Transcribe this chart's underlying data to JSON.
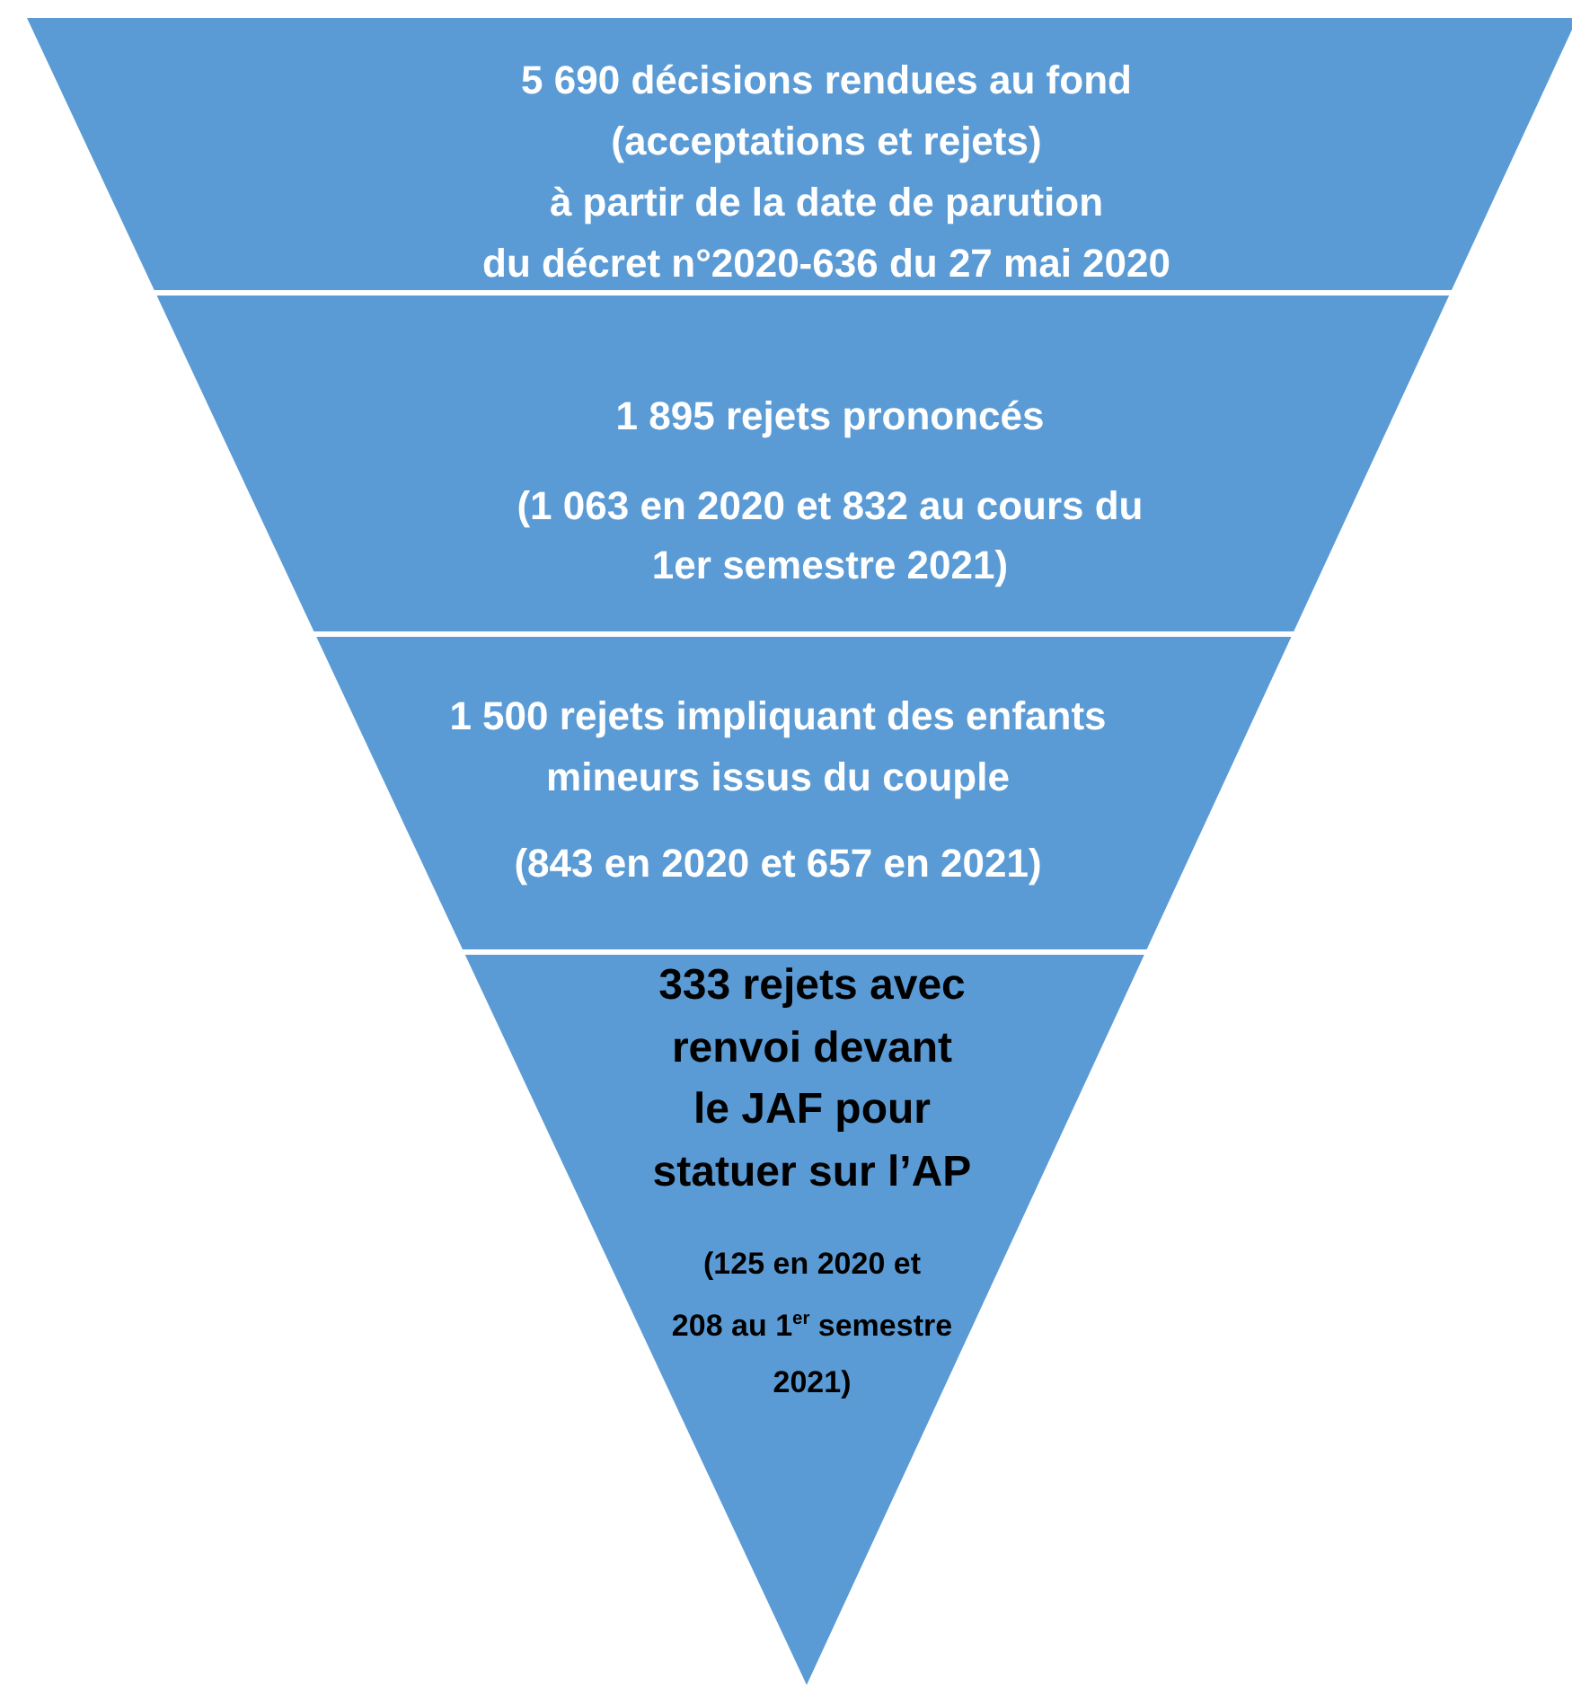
{
  "chart_data": {
    "type": "other",
    "categories": [
      "décisions rendues au fond\n(acceptations et rejets)\nà partir de la date de parution\ndu décret n°2020-636 du 27 mai 2020",
      "rejets prononcés\n\n(1 063 en 2020 et 832 au cours du\n1er semestre 2021)",
      "rejets impliquant des enfants\nmineurs issus du couple\n\n(843 en 2020 et 657 en 2021)",
      "rejets avec\nrenvoi devant\nle JAF pour\nstatuer sur l’AP\n\n(125 en 2020 et\n208 au 1$^{er}$ semestre\n2021)"
    ],
    "values": [
      5690,
      1895,
      1500,
      333
    ],
    "data_labels": true,
    "colors": [
      "#5b9bd5",
      "#5b9bd5",
      "#5b9bd5",
      "#5b9bd5"
    ]
  }
}
